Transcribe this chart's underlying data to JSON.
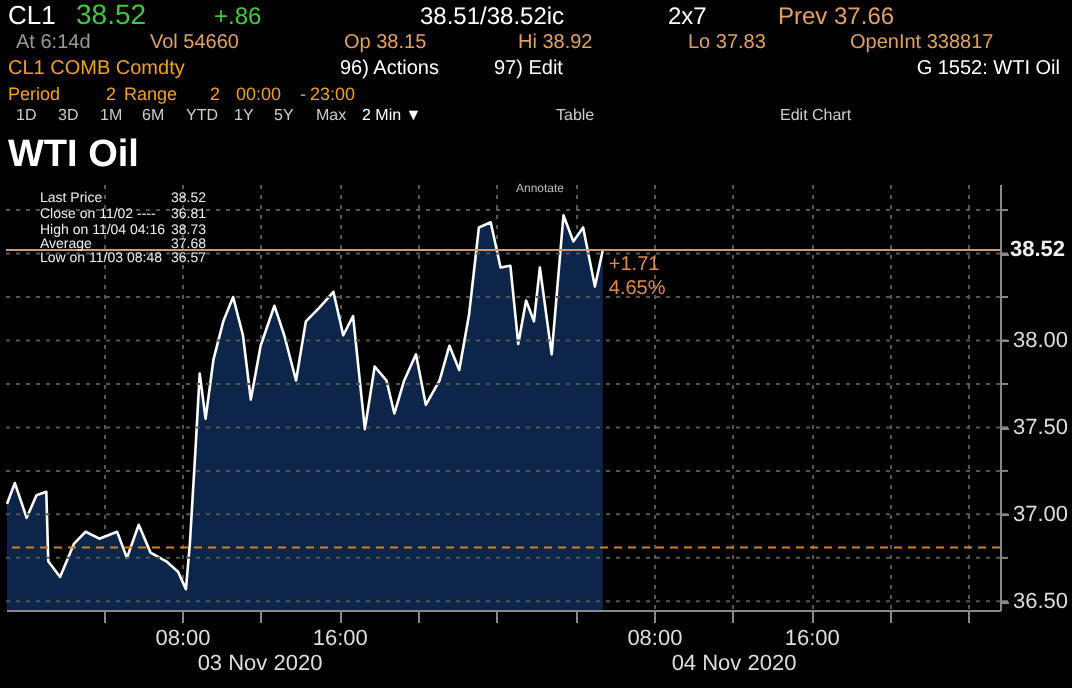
{
  "chart_data": {
    "type": "area",
    "title": "WTI Oil",
    "x": [
      "2020-11-02T23:06",
      "2020-11-02T23:30",
      "2020-11-03T00:06",
      "2020-11-03T00:36",
      "2020-11-03T01:06",
      "2020-11-03T01:12",
      "2020-11-03T01:48",
      "2020-11-03T02:30",
      "2020-11-03T03:06",
      "2020-11-03T03:48",
      "2020-11-03T04:42",
      "2020-11-03T05:12",
      "2020-11-03T05:48",
      "2020-11-03T06:24",
      "2020-11-03T07:12",
      "2020-11-03T07:48",
      "2020-11-03T08:12",
      "2020-11-03T08:24",
      "2020-11-03T08:42",
      "2020-11-03T08:54",
      "2020-11-03T09:12",
      "2020-11-03T09:36",
      "2020-11-03T10:06",
      "2020-11-03T10:36",
      "2020-11-03T11:06",
      "2020-11-03T11:30",
      "2020-11-03T12:00",
      "2020-11-03T12:42",
      "2020-11-03T13:12",
      "2020-11-03T13:48",
      "2020-11-03T14:18",
      "2020-11-03T15:00",
      "2020-11-03T15:42",
      "2020-11-03T16:12",
      "2020-11-03T16:42",
      "2020-11-03T17:18",
      "2020-11-03T17:48",
      "2020-11-03T18:24",
      "2020-11-03T18:48",
      "2020-11-03T19:18",
      "2020-11-03T19:54",
      "2020-11-03T20:24",
      "2020-11-03T21:06",
      "2020-11-03T21:36",
      "2020-11-03T22:06",
      "2020-11-03T22:36",
      "2020-11-03T23:06",
      "2020-11-03T23:42",
      "2020-11-04T00:12",
      "2020-11-04T00:42",
      "2020-11-04T01:06",
      "2020-11-04T01:30",
      "2020-11-04T01:54",
      "2020-11-04T02:12",
      "2020-11-04T02:48",
      "2020-11-04T03:24",
      "2020-11-04T03:54",
      "2020-11-04T04:24",
      "2020-11-04T05:00",
      "2020-11-04T05:24"
    ],
    "series": [
      {
        "color": "#0c2548",
        "values": [
          37.06,
          37.18,
          36.98,
          37.11,
          37.13,
          36.73,
          36.64,
          36.83,
          36.9,
          36.86,
          36.9,
          36.75,
          36.94,
          36.78,
          36.73,
          36.67,
          36.57,
          36.83,
          37.4,
          37.81,
          37.55,
          37.89,
          38.11,
          38.25,
          38.03,
          37.66,
          37.97,
          38.2,
          38.03,
          37.77,
          38.11,
          38.19,
          38.28,
          38.03,
          38.14,
          37.49,
          37.85,
          37.77,
          37.58,
          37.77,
          37.92,
          37.63,
          37.77,
          37.97,
          37.83,
          38.15,
          38.65,
          38.68,
          38.42,
          38.43,
          37.98,
          38.23,
          38.11,
          38.42,
          37.92,
          38.72,
          38.57,
          38.65,
          38.31,
          38.52
        ]
      }
    ],
    "xlim": [
      "2020-11-02T23:03",
      "2020-11-05T01:36"
    ],
    "xticks": [
      {
        "value": "2020-11-03T04:00",
        "label": null
      },
      {
        "value": "2020-11-03T08:00",
        "label": "08:00"
      },
      {
        "value": "2020-11-03T12:00",
        "label": null
      },
      {
        "value": "2020-11-03T16:00",
        "label": "16:00"
      },
      {
        "value": "2020-11-03T20:00",
        "label": null
      },
      {
        "value": "2020-11-04T00:00",
        "label": null
      },
      {
        "value": "2020-11-04T04:00",
        "label": null
      },
      {
        "value": "2020-11-04T08:00",
        "label": "08:00"
      },
      {
        "value": "2020-11-04T12:00",
        "label": null
      },
      {
        "value": "2020-11-04T16:00",
        "label": "16:00"
      },
      {
        "value": "2020-11-04T20:00",
        "label": null
      },
      {
        "value": "2020-11-05T00:00",
        "label": null
      }
    ],
    "ylim": [
      36.45,
      38.9
    ],
    "yticks": [
      {
        "value": 36.5,
        "label": "36.50"
      },
      {
        "value": 36.75,
        "label": null
      },
      {
        "value": 37,
        "label": "37.00"
      },
      {
        "value": 37.25,
        "label": null
      },
      {
        "value": 37.5,
        "label": "37.50"
      },
      {
        "value": 37.75,
        "label": null
      },
      {
        "value": 38,
        "label": "38.00"
      },
      {
        "value": 38.25,
        "label": null
      },
      {
        "value": 38.5,
        "label": null
      },
      {
        "value": 38.75,
        "label": null
      }
    ],
    "ref_lines": [
      {
        "axis": "y",
        "value": 38.52,
        "label": "38.52",
        "color": "#c89a70",
        "line_style": "solid"
      },
      {
        "axis": "y",
        "value": 36.81,
        "color": "#d08020",
        "line_style": "dashed"
      }
    ],
    "annotations": [
      {
        "text": "+1.71",
        "x": "2020-11-04T05:24",
        "y": 38.52
      },
      {
        "text": "4.65%",
        "x": "2020-11-04T05:24",
        "y": 38.52
      },
      "CL1",
      "38.52",
      "+.86",
      "38.51/38.52ic",
      "2x7",
      "Prev 37.66",
      "At 6:14d",
      "Vol 54660",
      "Op 38.15",
      "Hi 38.92",
      "Lo 37.83",
      "OpenInt 338817",
      "CL1 COMB Comdty",
      "96) Actions",
      "97) Edit",
      "G 1552: WTI Oil",
      "Period",
      "2",
      "Range",
      "2",
      "00:00",
      "-",
      "23:00",
      "1D",
      "3D",
      "1M",
      "6M",
      "YTD",
      "1Y",
      "5Y",
      "Max",
      "2 Min ▼",
      "Table",
      "Edit Chart",
      "Annotate",
      "Last Price",
      "Close on 11/02 ----",
      "High on 11/04 04:16",
      "Average",
      "Low on 11/03 08:48",
      "38.52",
      "36.81",
      "38.73",
      "37.68",
      "36.57",
      "03 Nov 2020",
      "04 Nov 2020"
    ],
    "grid": true,
    "marker": "none",
    "line_style": "solid"
  }
}
